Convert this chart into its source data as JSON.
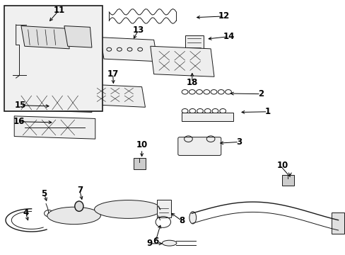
{
  "background_color": "#ffffff",
  "line_color": "#1a1a1a",
  "label_color": "#000000",
  "lw_thin": 0.7,
  "lw_med": 1.0,
  "label_fontsize": 8.5
}
